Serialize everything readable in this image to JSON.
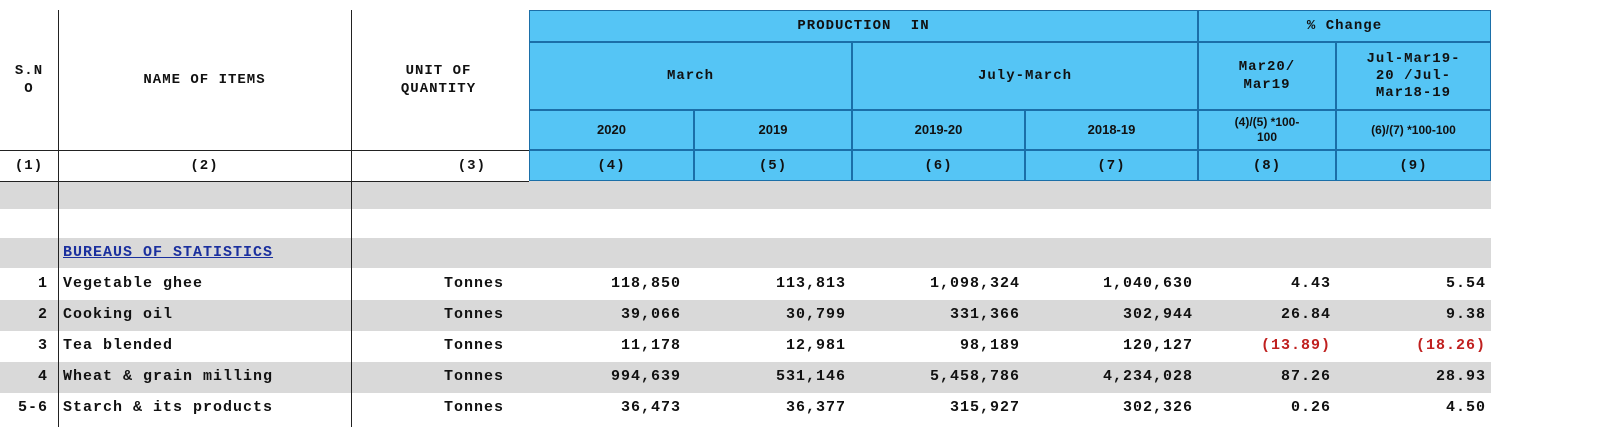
{
  "header": {
    "sno": "S.N\nO",
    "name_of_items": "NAME OF ITEMS",
    "unit_of_quantity": "UNIT OF\nQUANTITY",
    "production_in": "PRODUCTION IN",
    "pct_change": "% Change",
    "march": "March",
    "july_march": "July-March",
    "mar20_mar19": "Mar20/\nMar19",
    "julmar": "Jul-Mar19-\n20 /Jul-\nMar18-19",
    "years": [
      "2020",
      "2019",
      "2019-20",
      "2018-19"
    ],
    "formula8": "(4)/(5) *100-\n100",
    "formula9": "(6)/(7) *100-100",
    "col_numbers": [
      "(1)",
      "(2)",
      "(3)",
      "(4)",
      "(5)",
      "(6)",
      "(7)",
      "(8)",
      "(9)"
    ]
  },
  "section_title": "BUREAUS OF STATISTICS",
  "rows": [
    {
      "sno": "1",
      "name": "Vegetable ghee",
      "unit": "Tonnes",
      "mar2020": "118,850",
      "mar2019": "113,813",
      "jm1920": "1,098,324",
      "jm1819": "1,040,630",
      "chg8": "4.43",
      "chg9": "5.54",
      "neg8": false,
      "neg9": false
    },
    {
      "sno": "2",
      "name": "Cooking oil",
      "unit": "Tonnes",
      "mar2020": "39,066",
      "mar2019": "30,799",
      "jm1920": "331,366",
      "jm1819": "302,944",
      "chg8": "26.84",
      "chg9": "9.38",
      "neg8": false,
      "neg9": false
    },
    {
      "sno": "3",
      "name": "Tea blended",
      "unit": "Tonnes",
      "mar2020": "11,178",
      "mar2019": "12,981",
      "jm1920": "98,189",
      "jm1819": "120,127",
      "chg8": "(13.89)",
      "chg9": "(18.26)",
      "neg8": true,
      "neg9": true
    },
    {
      "sno": "4",
      "name": "Wheat & grain milling",
      "unit": "Tonnes",
      "mar2020": "994,639",
      "mar2019": "531,146",
      "jm1920": "5,458,786",
      "jm1819": "4,234,028",
      "chg8": "87.26",
      "chg9": "28.93",
      "neg8": false,
      "neg9": false
    },
    {
      "sno": "5-6",
      "name": "Starch & its products",
      "unit": "Tonnes",
      "mar2020": "36,473",
      "mar2019": "36,377",
      "jm1920": "315,927",
      "jm1819": "302,326",
      "chg8": "0.26",
      "chg9": "4.50",
      "neg8": false,
      "neg9": false
    }
  ]
}
